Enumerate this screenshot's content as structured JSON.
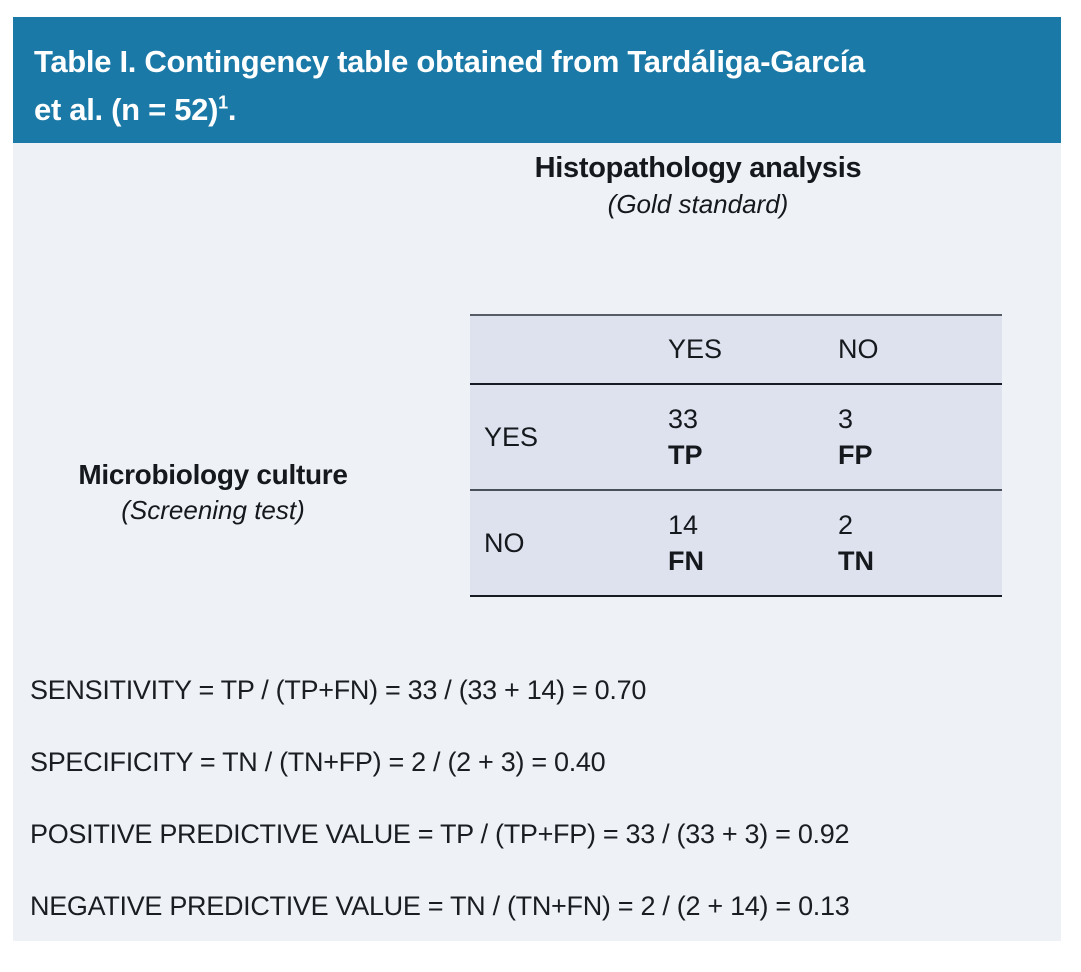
{
  "banner": {
    "title_line1": "Table I. Contingency table obtained from Tardáliga-García",
    "title_line2": "et al. (n = 52)",
    "title_superscript": "1",
    "title_suffix": ".",
    "background_color": "#1b79a7",
    "text_color": "#ffffff"
  },
  "column_axis": {
    "title": "Histopathology analysis",
    "subtitle": "(Gold standard)"
  },
  "row_axis": {
    "title": "Microbiology culture",
    "subtitle": "(Screening test)"
  },
  "contingency_table": {
    "column_headers": [
      "YES",
      "NO"
    ],
    "rows": [
      {
        "label": "YES",
        "cells": [
          {
            "value": "33",
            "code": "TP"
          },
          {
            "value": "3",
            "code": "FP"
          }
        ]
      },
      {
        "label": "NO",
        "cells": [
          {
            "value": "14",
            "code": "FN"
          },
          {
            "value": "2",
            "code": "TN"
          }
        ]
      }
    ],
    "background_color": "#dde2ee",
    "page_background_color": "#eef1f6"
  },
  "formulas": [
    "SENSITIVITY = TP / (TP+FN) = 33 / (33 + 14) = 0.70",
    "SPECIFICITY = TN / (TN+FP) = 2 / (2 + 3) = 0.40",
    "POSITIVE PREDICTIVE VALUE = TP / (TP+FP) = 33 / (33 + 3) = 0.92",
    "NEGATIVE PREDICTIVE VALUE = TN / (TN+FN) = 2 / (2 + 14) = 0.13"
  ]
}
